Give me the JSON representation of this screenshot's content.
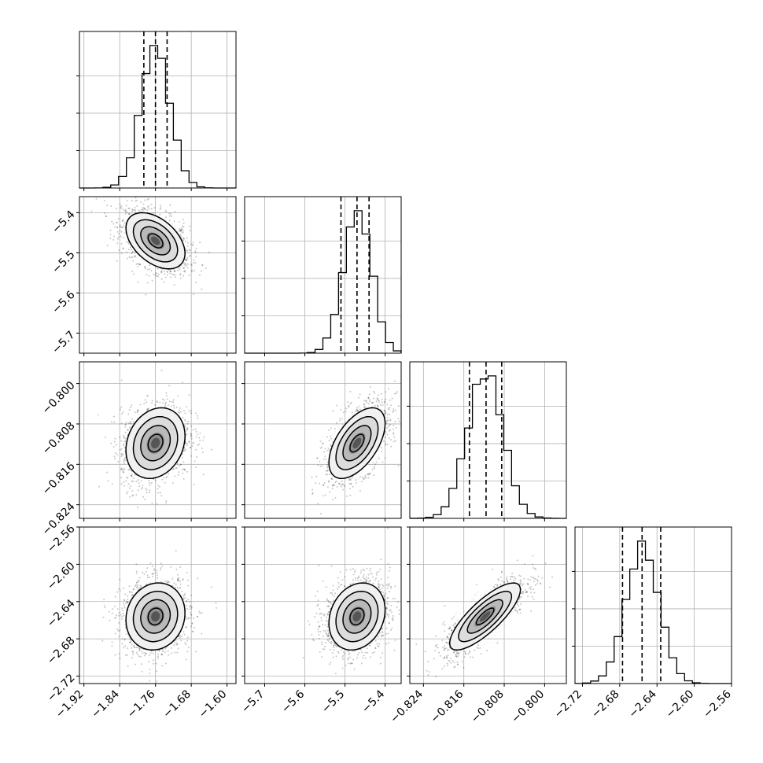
{
  "chart_data": {
    "type": "corner",
    "parameters": [
      {
        "mean": -1.76,
        "sd": 0.033,
        "range": [
          -1.93,
          -1.58
        ],
        "quantiles": [
          -1.786,
          -1.76,
          -1.734
        ],
        "ticks": [
          -1.92,
          -1.84,
          -1.76,
          -1.68,
          -1.6
        ],
        "tick_labels": [
          "−1.92",
          "−1.84",
          "−1.76",
          "−1.68",
          "−1.60"
        ]
      },
      {
        "mean": -5.47,
        "sd": 0.035,
        "range": [
          -5.75,
          -5.36
        ],
        "quantiles": [
          -5.51,
          -5.47,
          -5.44
        ],
        "ticks": [
          -5.7,
          -5.6,
          -5.5,
          -5.4
        ],
        "tick_labels": [
          "−5.7",
          "−5.6",
          "−5.5",
          "−5.4"
        ]
      },
      {
        "mean": -0.8118,
        "sd": 0.0035,
        "range": [
          -0.8267,
          -0.7957
        ],
        "quantiles": [
          -0.8149,
          -0.8116,
          -0.8085
        ],
        "ticks": [
          -0.824,
          -0.816,
          -0.808,
          -0.8
        ],
        "tick_labels": [
          "−0.824",
          "−0.816",
          "−0.808",
          "−0.800"
        ]
      },
      {
        "mean": -2.656,
        "sd": 0.018,
        "range": [
          -2.728,
          -2.56
        ],
        "quantiles": [
          -2.677,
          -2.656,
          -2.636
        ],
        "ticks": [
          -2.72,
          -2.68,
          -2.64,
          -2.6,
          -2.56
        ],
        "tick_labels": [
          "−2.72",
          "−2.68",
          "−2.64",
          "−2.60",
          "−2.56"
        ]
      }
    ],
    "correlations": [
      [
        1.0,
        -0.45,
        0.2,
        0.1
      ],
      [
        -0.45,
        1.0,
        0.55,
        0.2
      ],
      [
        0.2,
        0.55,
        1.0,
        0.8
      ],
      [
        0.1,
        0.2,
        0.8,
        1.0
      ]
    ],
    "histogram_bins": 20,
    "contour_levels": [
      "0.5σ",
      "1σ",
      "1.5σ",
      "2σ"
    ],
    "grid": true,
    "colors": {
      "line": "#000000",
      "grid": "#b0b0b0",
      "points": "#000000"
    }
  }
}
